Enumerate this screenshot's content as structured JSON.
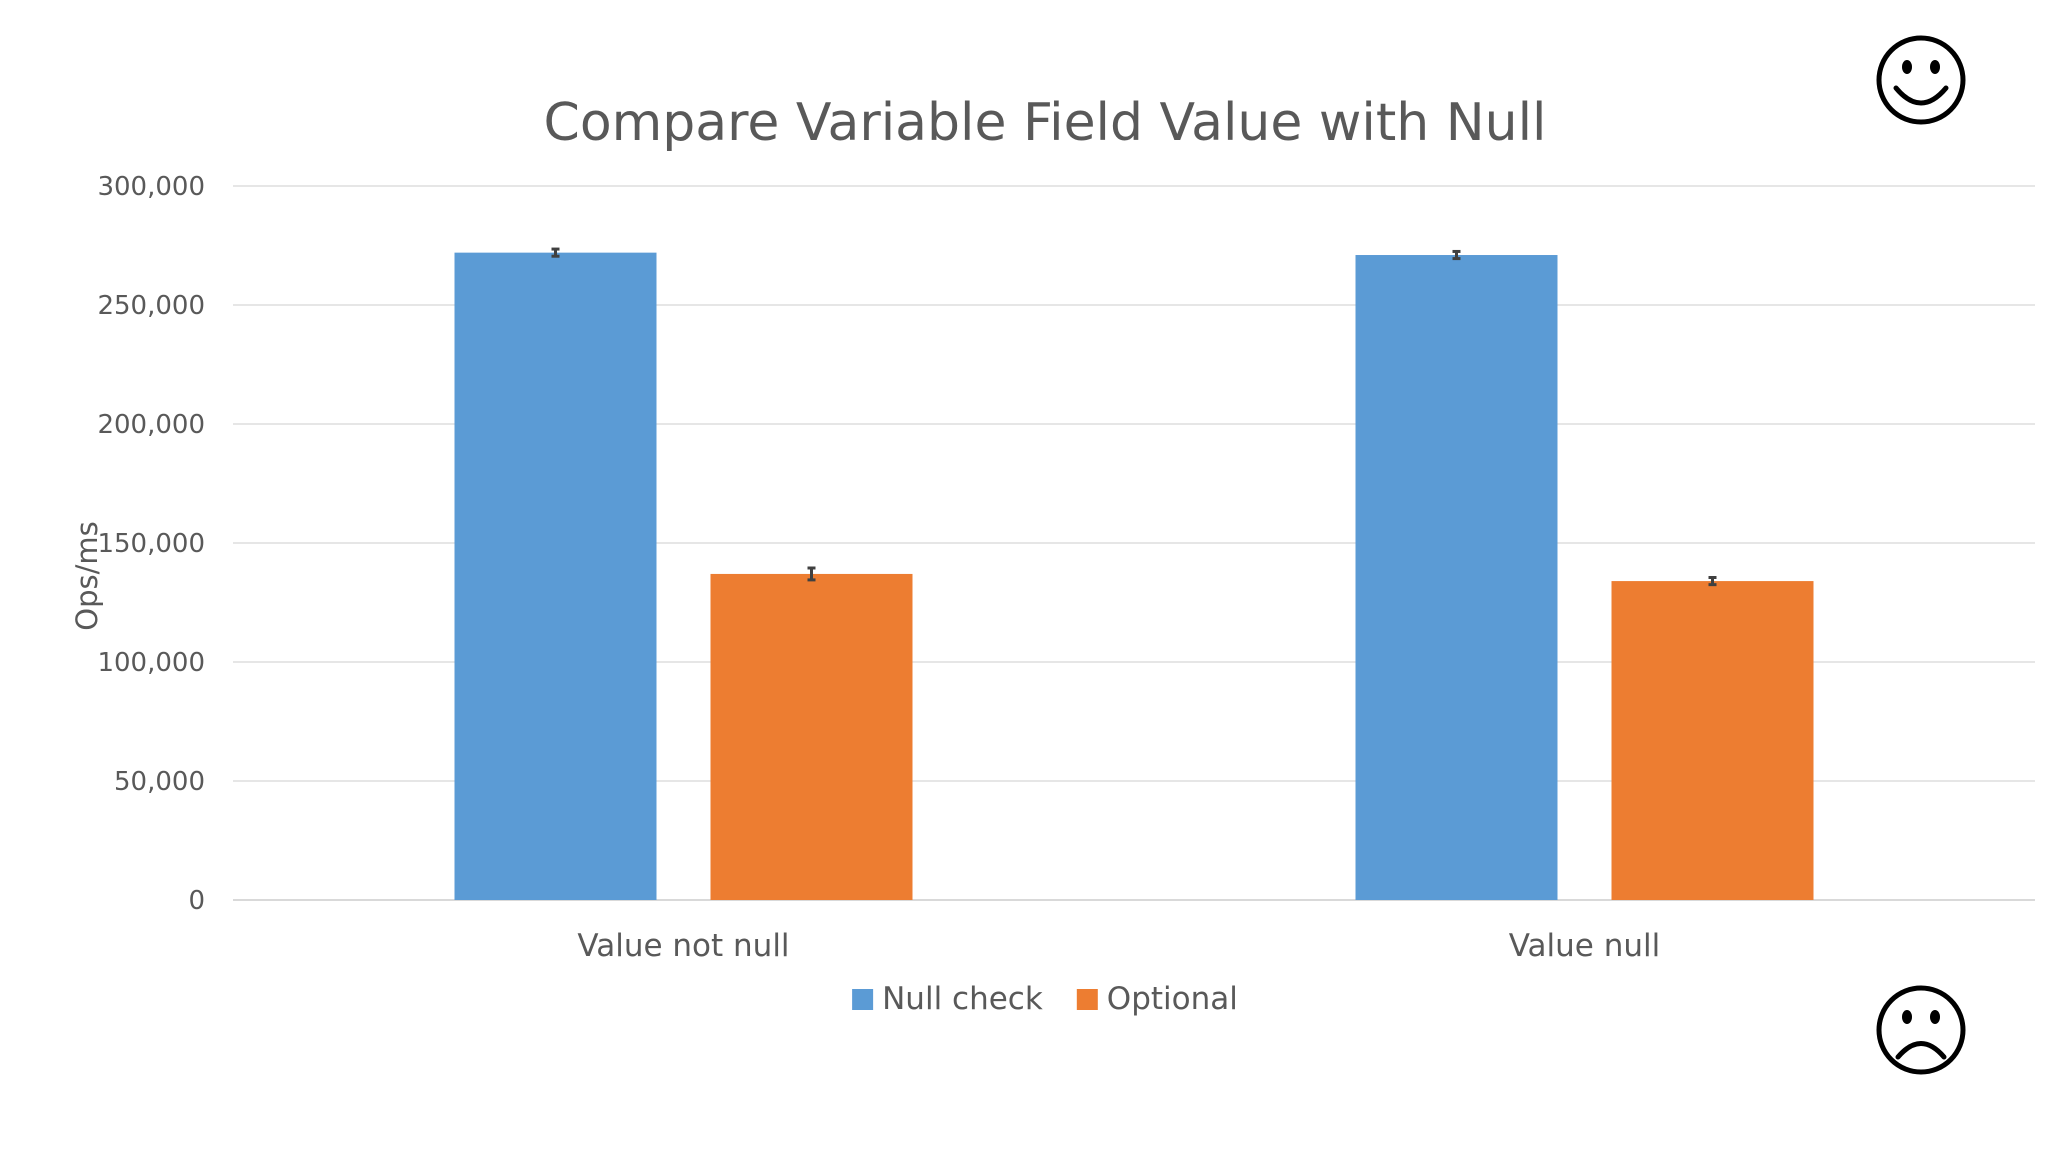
{
  "chart_data": {
    "type": "bar",
    "title": "Compare Variable Field Value with Null",
    "xlabel": "",
    "ylabel": "Ops/ms",
    "categories": [
      "Value not null",
      "Value null"
    ],
    "series": [
      {
        "name": "Null check",
        "color": "#5b9bd5",
        "values": [
          272000,
          271000
        ],
        "errors": [
          1500,
          1500
        ]
      },
      {
        "name": "Optional",
        "color": "#ed7d31",
        "values": [
          137000,
          134000
        ],
        "errors": [
          2500,
          1500
        ]
      }
    ],
    "ylim": [
      0,
      300000
    ],
    "yticks": [
      0,
      50000,
      100000,
      150000,
      200000,
      250000,
      300000
    ],
    "ytick_labels": [
      "0",
      "50,000",
      "100,000",
      "150,000",
      "200,000",
      "250,000",
      "300,000"
    ],
    "grid": true,
    "legend": "bottom-center"
  },
  "decorations": {
    "top_right_icon": "smiley-face-icon",
    "bottom_right_icon": "frowning-face-icon"
  }
}
